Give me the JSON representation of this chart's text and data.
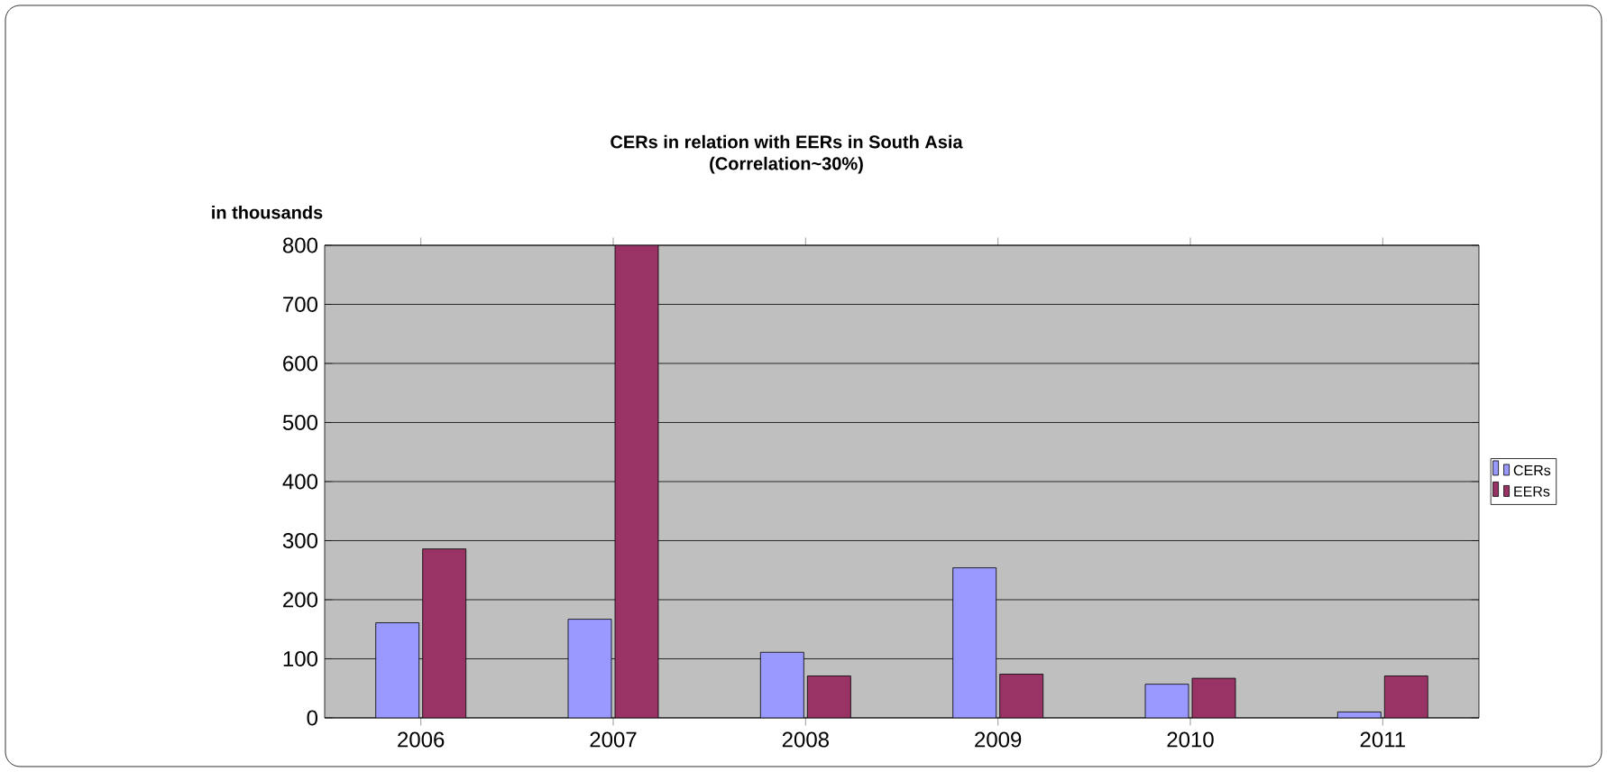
{
  "chart_data": {
    "type": "bar",
    "title": "CERs in relation with EERs in South Asia",
    "subtitle": "(Correlation~30%)",
    "ylabel": "in thousands",
    "categories": [
      "2006",
      "2007",
      "2008",
      "2009",
      "2010",
      "2011"
    ],
    "series": [
      {
        "name": "CERs",
        "color": "#9999ff",
        "values": [
          161,
          167,
          111,
          254,
          57,
          10
        ]
      },
      {
        "name": "EERs",
        "color": "#993366",
        "values": [
          286,
          800,
          71,
          74,
          67,
          71
        ]
      }
    ],
    "ylim": [
      0,
      800
    ],
    "yticks": [
      0,
      100,
      200,
      300,
      400,
      500,
      600,
      700,
      800
    ],
    "grid": "y",
    "legend": "right"
  }
}
